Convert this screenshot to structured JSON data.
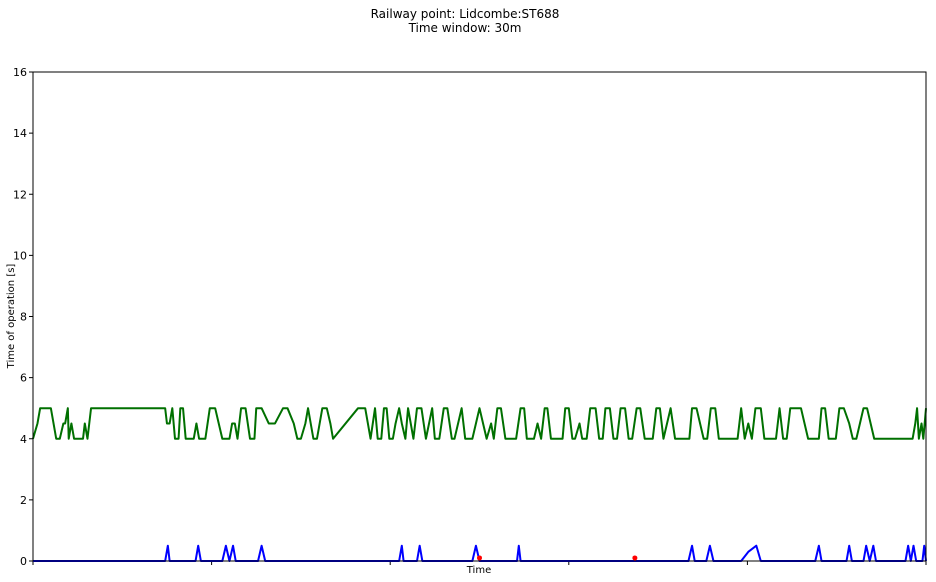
{
  "chart_data": {
    "type": "line",
    "title": "Railway point: Lidcombe:ST688",
    "subtitle": "Time window: 30m",
    "xlabel": "Time",
    "ylabel": "Time of operation [s]",
    "ylim": [
      0,
      16
    ],
    "yticks": [
      0,
      2,
      4,
      6,
      8,
      10,
      12,
      14,
      16
    ],
    "xlim": [
      0,
      100
    ],
    "x_tick_positions": [
      0,
      20,
      40,
      60,
      80,
      100
    ],
    "grid": false,
    "series": [
      {
        "color": "#007000",
        "points": [
          [
            0,
            4
          ],
          [
            0.5,
            4.5
          ],
          [
            0.8,
            5
          ],
          [
            2,
            5
          ],
          [
            2.3,
            4.5
          ],
          [
            2.6,
            4
          ],
          [
            3,
            4
          ],
          [
            3.4,
            4.5
          ],
          [
            3.6,
            4.5
          ],
          [
            3.9,
            5
          ],
          [
            4,
            4
          ],
          [
            4.3,
            4.5
          ],
          [
            4.6,
            4
          ],
          [
            5.6,
            4
          ],
          [
            5.8,
            4.5
          ],
          [
            6.1,
            4
          ],
          [
            6.5,
            5
          ],
          [
            6.9,
            5
          ],
          [
            7.3,
            5
          ],
          [
            8,
            5
          ],
          [
            10,
            5
          ],
          [
            12,
            5
          ],
          [
            14,
            5
          ],
          [
            14.8,
            5
          ],
          [
            15,
            4.5
          ],
          [
            15.3,
            4.5
          ],
          [
            15.6,
            5
          ],
          [
            15.9,
            4
          ],
          [
            16.3,
            4
          ],
          [
            16.5,
            5
          ],
          [
            16.8,
            5
          ],
          [
            17.1,
            4
          ],
          [
            17.5,
            4
          ],
          [
            18,
            4
          ],
          [
            18.3,
            4.5
          ],
          [
            18.6,
            4
          ],
          [
            18.9,
            4
          ],
          [
            19.3,
            4
          ],
          [
            19.8,
            5
          ],
          [
            20.4,
            5
          ],
          [
            20.8,
            4.5
          ],
          [
            21.2,
            4
          ],
          [
            21.6,
            4
          ],
          [
            22,
            4
          ],
          [
            22.3,
            4.5
          ],
          [
            22.6,
            4.5
          ],
          [
            22.9,
            4
          ],
          [
            23.3,
            5
          ],
          [
            23.8,
            5
          ],
          [
            24.3,
            4
          ],
          [
            24.8,
            4
          ],
          [
            25,
            5
          ],
          [
            25.3,
            5
          ],
          [
            25.6,
            5
          ],
          [
            26.4,
            4.5
          ],
          [
            26.8,
            4.5
          ],
          [
            27.1,
            4.5
          ],
          [
            28,
            5
          ],
          [
            28.5,
            5
          ],
          [
            29.2,
            4.5
          ],
          [
            29.6,
            4
          ],
          [
            30,
            4
          ],
          [
            30.5,
            4.5
          ],
          [
            30.8,
            5
          ],
          [
            31.4,
            4
          ],
          [
            31.8,
            4
          ],
          [
            32.4,
            5
          ],
          [
            32.9,
            5
          ],
          [
            33.3,
            4.5
          ],
          [
            33.6,
            4
          ],
          [
            36.4,
            5
          ],
          [
            37.2,
            5
          ],
          [
            37.5,
            4.5
          ],
          [
            37.8,
            4
          ],
          [
            38.3,
            5
          ],
          [
            38.6,
            4
          ],
          [
            39,
            4
          ],
          [
            39.3,
            5
          ],
          [
            39.6,
            5
          ],
          [
            39.9,
            4
          ],
          [
            40.3,
            4
          ],
          [
            40.6,
            4.5
          ],
          [
            41,
            5
          ],
          [
            41.3,
            4.5
          ],
          [
            41.7,
            4
          ],
          [
            42,
            5
          ],
          [
            42.3,
            4.5
          ],
          [
            42.6,
            4
          ],
          [
            43,
            5
          ],
          [
            43.5,
            5
          ],
          [
            44,
            4
          ],
          [
            44.7,
            5
          ],
          [
            45,
            4
          ],
          [
            45.5,
            4
          ],
          [
            46,
            5
          ],
          [
            46.4,
            5
          ],
          [
            46.9,
            4
          ],
          [
            47.2,
            4
          ],
          [
            47.6,
            4.5
          ],
          [
            48,
            5
          ],
          [
            48.4,
            4
          ],
          [
            49.2,
            4
          ],
          [
            49.6,
            4.5
          ],
          [
            50,
            5
          ],
          [
            50.4,
            4.5
          ],
          [
            50.8,
            4
          ],
          [
            51.3,
            4.5
          ],
          [
            51.6,
            4
          ],
          [
            52,
            5
          ],
          [
            52.4,
            5
          ],
          [
            52.9,
            4
          ],
          [
            53.3,
            4
          ],
          [
            53.7,
            4
          ],
          [
            54.1,
            4
          ],
          [
            54.6,
            5
          ],
          [
            55,
            5
          ],
          [
            55.3,
            4
          ],
          [
            55.7,
            4
          ],
          [
            56.1,
            4
          ],
          [
            56.5,
            4.5
          ],
          [
            56.9,
            4
          ],
          [
            57.3,
            5
          ],
          [
            57.6,
            5
          ],
          [
            58,
            4
          ],
          [
            58.4,
            4
          ],
          [
            58.8,
            4
          ],
          [
            59.3,
            4
          ],
          [
            59.6,
            5
          ],
          [
            60,
            5
          ],
          [
            60.4,
            4
          ],
          [
            60.7,
            4
          ],
          [
            61.2,
            4.5
          ],
          [
            61.5,
            4
          ],
          [
            62,
            4
          ],
          [
            62.4,
            5
          ],
          [
            63,
            5
          ],
          [
            63.4,
            4
          ],
          [
            63.8,
            4
          ],
          [
            64.1,
            5
          ],
          [
            64.6,
            5
          ],
          [
            65,
            4
          ],
          [
            65.4,
            4
          ],
          [
            65.8,
            5
          ],
          [
            66.3,
            5
          ],
          [
            66.7,
            4
          ],
          [
            67.1,
            4
          ],
          [
            67.6,
            5
          ],
          [
            68,
            5
          ],
          [
            68.5,
            4
          ],
          [
            69,
            4
          ],
          [
            69.4,
            4
          ],
          [
            69.8,
            5
          ],
          [
            70.2,
            5
          ],
          [
            70.6,
            4
          ],
          [
            71,
            4.5
          ],
          [
            71.4,
            5
          ],
          [
            71.9,
            4
          ],
          [
            72.3,
            4
          ],
          [
            72.7,
            4
          ],
          [
            73.1,
            4
          ],
          [
            73.5,
            4
          ],
          [
            73.8,
            5
          ],
          [
            74.3,
            5
          ],
          [
            74.7,
            4.5
          ],
          [
            75.1,
            4
          ],
          [
            75.5,
            4
          ],
          [
            75.9,
            5
          ],
          [
            76.4,
            5
          ],
          [
            76.8,
            4
          ],
          [
            77.2,
            4
          ],
          [
            77.6,
            4
          ],
          [
            78,
            4
          ],
          [
            78.5,
            4
          ],
          [
            78.9,
            4
          ],
          [
            79.3,
            5
          ],
          [
            79.7,
            4
          ],
          [
            80.1,
            4.5
          ],
          [
            80.5,
            4
          ],
          [
            80.9,
            5
          ],
          [
            81.5,
            5
          ],
          [
            81.9,
            4
          ],
          [
            82.3,
            4
          ],
          [
            82.7,
            4
          ],
          [
            83.2,
            4
          ],
          [
            83.6,
            5
          ],
          [
            84,
            4
          ],
          [
            84.4,
            4
          ],
          [
            84.8,
            5
          ],
          [
            85.2,
            5
          ],
          [
            85.6,
            5
          ],
          [
            86,
            5
          ],
          [
            86.4,
            4.5
          ],
          [
            86.8,
            4
          ],
          [
            87.4,
            4
          ],
          [
            88,
            4
          ],
          [
            88.3,
            5
          ],
          [
            88.7,
            5
          ],
          [
            89.1,
            4
          ],
          [
            89.4,
            4
          ],
          [
            89.9,
            4
          ],
          [
            90.3,
            5
          ],
          [
            90.8,
            5
          ],
          [
            91.4,
            4.5
          ],
          [
            91.8,
            4
          ],
          [
            92.2,
            4
          ],
          [
            92.6,
            4.5
          ],
          [
            93,
            5
          ],
          [
            93.4,
            5
          ],
          [
            93.8,
            4.5
          ],
          [
            94.2,
            4
          ],
          [
            94.7,
            4
          ],
          [
            95.3,
            4
          ],
          [
            96,
            4
          ],
          [
            96.6,
            4
          ],
          [
            97.3,
            4
          ],
          [
            98,
            4
          ],
          [
            98.5,
            4
          ],
          [
            98.8,
            4.5
          ],
          [
            99,
            5
          ],
          [
            99.2,
            4
          ],
          [
            99.5,
            4.5
          ],
          [
            99.7,
            4
          ],
          [
            100,
            5
          ]
        ]
      },
      {
        "color": "#0000ff",
        "points": [
          [
            0,
            0
          ],
          [
            14.8,
            0
          ],
          [
            15.1,
            0.5
          ],
          [
            15.3,
            0
          ],
          [
            18.2,
            0
          ],
          [
            18.5,
            0.5
          ],
          [
            18.8,
            0
          ],
          [
            21.2,
            0
          ],
          [
            21.6,
            0.5
          ],
          [
            22,
            0
          ],
          [
            22.4,
            0.5
          ],
          [
            22.7,
            0
          ],
          [
            25.2,
            0
          ],
          [
            25.6,
            0.5
          ],
          [
            26,
            0
          ],
          [
            41,
            0
          ],
          [
            41.3,
            0.5
          ],
          [
            41.5,
            0
          ],
          [
            43,
            0
          ],
          [
            43.3,
            0.5
          ],
          [
            43.6,
            0
          ],
          [
            49.2,
            0
          ],
          [
            49.6,
            0.5
          ],
          [
            50,
            0
          ],
          [
            54.2,
            0
          ],
          [
            54.4,
            0.5
          ],
          [
            54.6,
            0
          ],
          [
            73.4,
            0
          ],
          [
            73.8,
            0.5
          ],
          [
            74.1,
            0
          ],
          [
            75.4,
            0
          ],
          [
            75.8,
            0.5
          ],
          [
            76.2,
            0
          ],
          [
            79.3,
            0
          ],
          [
            80.1,
            0.3
          ],
          [
            81,
            0.5
          ],
          [
            81.5,
            0
          ],
          [
            87.6,
            0
          ],
          [
            88,
            0.5
          ],
          [
            88.3,
            0
          ],
          [
            91.1,
            0
          ],
          [
            91.4,
            0.5
          ],
          [
            91.7,
            0
          ],
          [
            93,
            0
          ],
          [
            93.3,
            0.5
          ],
          [
            93.7,
            0
          ],
          [
            94.1,
            0.5
          ],
          [
            94.4,
            0
          ],
          [
            97.7,
            0
          ],
          [
            98,
            0.5
          ],
          [
            98.3,
            0
          ],
          [
            98.6,
            0.5
          ],
          [
            98.9,
            0
          ],
          [
            99.6,
            0
          ],
          [
            99.8,
            0.5
          ],
          [
            100,
            0
          ]
        ]
      }
    ],
    "markers": {
      "color": "#ff0000",
      "points": [
        [
          50,
          0.1
        ],
        [
          67.4,
          0.1
        ]
      ]
    }
  }
}
